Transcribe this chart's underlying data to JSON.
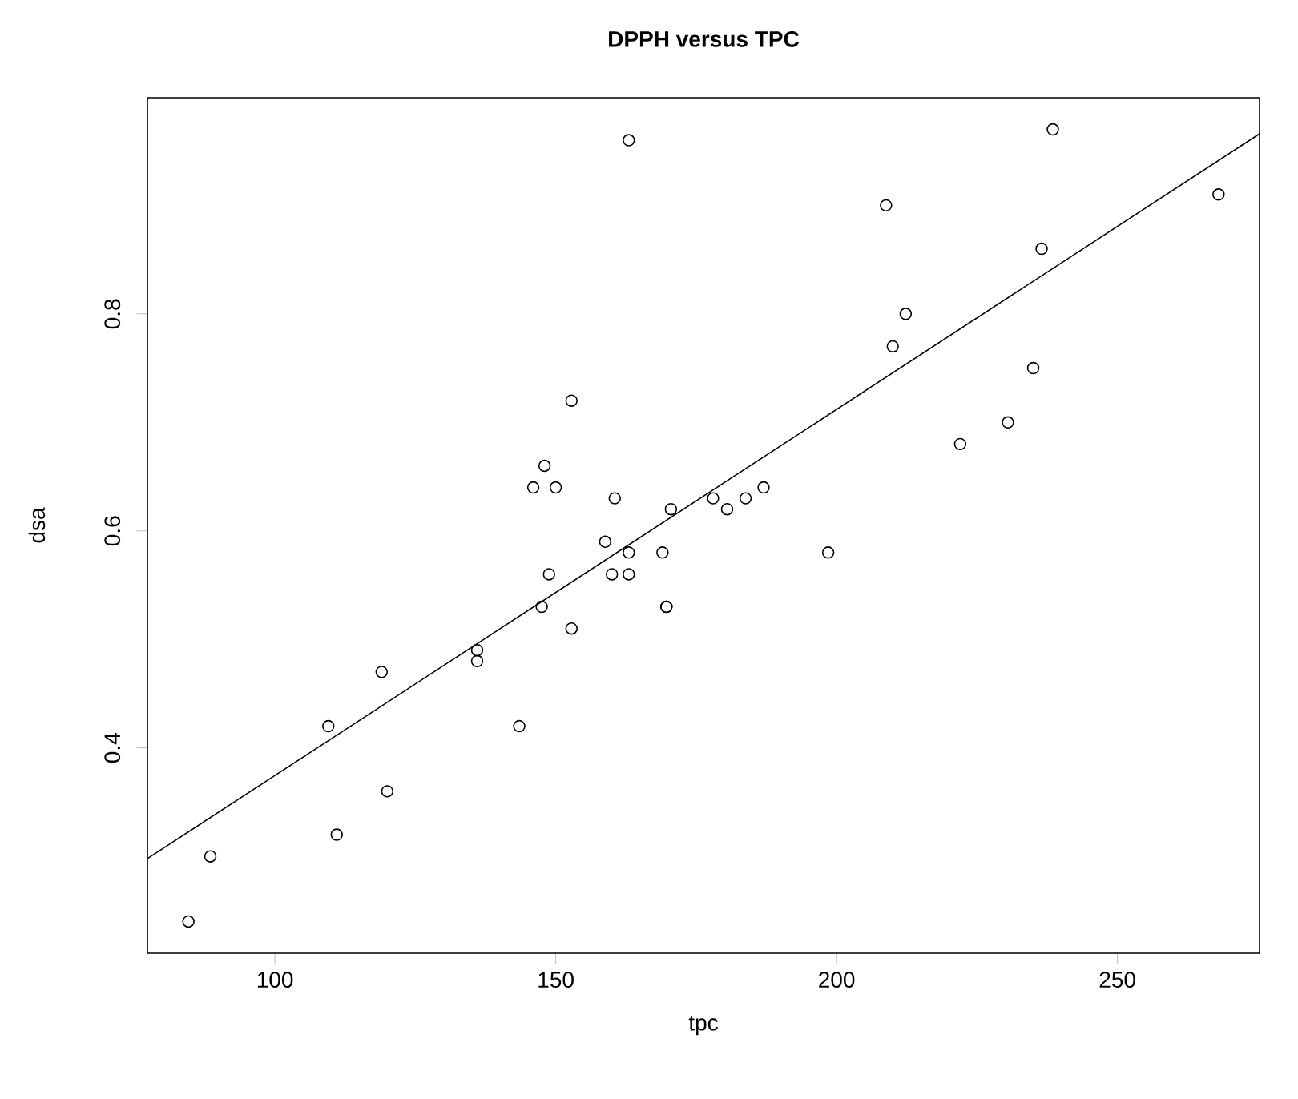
{
  "chart_data": {
    "type": "scatter",
    "title": "**DPPH versus TPC**",
    "xlabel": "tpc",
    "ylabel": "dsa",
    "xlim": [
      77.3,
      275.3
    ],
    "ylim": [
      0.2108,
      0.9992
    ],
    "xticks": [
      100,
      150,
      200,
      250
    ],
    "yticks": [
      0.4,
      0.6,
      0.8
    ],
    "grid": false,
    "series": [
      {
        "marker": "circle",
        "color": "#000000",
        "x": [
          84.6,
          88.5,
          109.5,
          111,
          119,
          120,
          136,
          136,
          143.5,
          146,
          147.5,
          148,
          148.8,
          150,
          152.8,
          152.8,
          158.8,
          160,
          160.5,
          163,
          163,
          163,
          169,
          169.7,
          169.7,
          170.5,
          178,
          180.5,
          183.8,
          187,
          198.5,
          208.8,
          210,
          212.3,
          222,
          230.5,
          235,
          236.5,
          238.5,
          268
        ],
        "values": [
          0.24,
          0.3,
          0.42,
          0.32,
          0.47,
          0.36,
          0.49,
          0.48,
          0.42,
          0.64,
          0.53,
          0.66,
          0.56,
          0.64,
          0.51,
          0.72,
          0.59,
          0.56,
          0.63,
          0.96,
          0.58,
          0.56,
          0.58,
          0.53,
          0.53,
          0.62,
          0.63,
          0.62,
          0.63,
          0.64,
          0.58,
          0.9,
          0.77,
          0.8,
          0.68,
          0.7,
          0.75,
          0.86,
          0.97,
          0.91
        ]
      },
      {
        "type": "line",
        "marker": "none",
        "line_style": "solid",
        "color": "#000000",
        "x": [
          77.3,
          275.3
        ],
        "values": [
          0.298,
          0.966
        ]
      }
    ]
  }
}
